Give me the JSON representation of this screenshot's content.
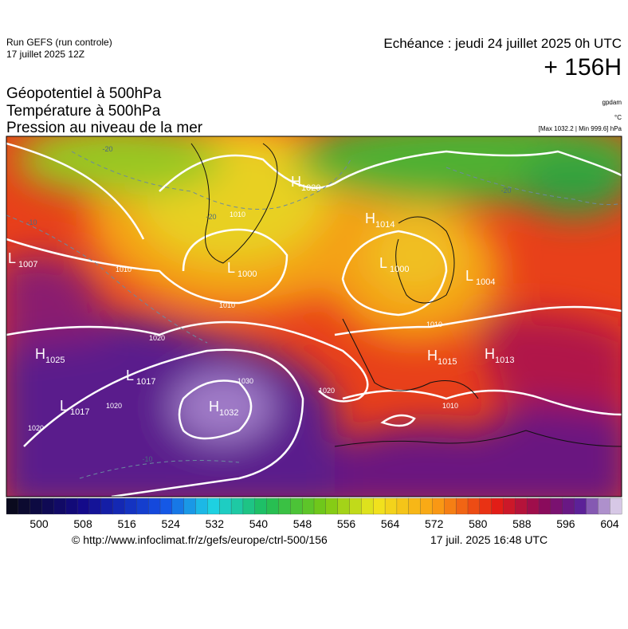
{
  "header": {
    "run": "Run GEFS (run controle)",
    "run_time": "17 juillet 2025 12Z",
    "valid": "Echéance : jeudi 24 juillet 2025 0h UTC",
    "lead": "+ 156H"
  },
  "fields": [
    "Géopotentiel à 500hPa",
    "Température à 500hPa",
    "Pression au niveau de la mer"
  ],
  "units": [
    "gpdam",
    "°C",
    "[Max 1032.2 | Min 999.6] hPa"
  ],
  "centers": [
    {
      "type": "L",
      "value": "1007"
    },
    {
      "type": "L",
      "value": "1000"
    },
    {
      "type": "H",
      "value": "1020"
    },
    {
      "type": "H",
      "value": "1014"
    },
    {
      "type": "L",
      "value": "1000"
    },
    {
      "type": "L",
      "value": "1004"
    },
    {
      "type": "H",
      "value": "1025"
    },
    {
      "type": "L",
      "value": "1017"
    },
    {
      "type": "L",
      "value": "1017"
    },
    {
      "type": "H",
      "value": "1032"
    },
    {
      "type": "H",
      "value": "1015"
    },
    {
      "type": "H",
      "value": "1013"
    }
  ],
  "contour_labels": [
    "1010",
    "1010",
    "1020",
    "1020",
    "1020",
    "1020",
    "1030",
    "1010",
    "1010",
    "-20",
    "-20",
    "-20",
    "-10",
    "-10",
    "1010"
  ],
  "colorbar": {
    "ticks": [
      500,
      508,
      516,
      524,
      532,
      540,
      548,
      556,
      564,
      572,
      580,
      588,
      596,
      604
    ]
  },
  "footer": {
    "source": "© http://www.infoclimat.fr/z/gefs/europe/ctrl-500/156",
    "generated": "17 juil. 2025 16:48 UTC"
  }
}
